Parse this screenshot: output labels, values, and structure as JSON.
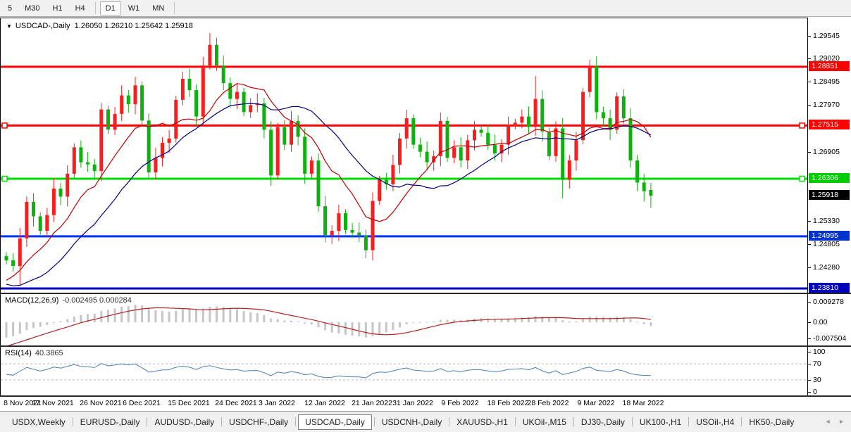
{
  "toolbar": {
    "timeframes": [
      {
        "label": "5",
        "active": false
      },
      {
        "label": "M30",
        "active": false
      },
      {
        "label": "H1",
        "active": false
      },
      {
        "label": "H4",
        "active": false
      },
      {
        "label": "D1",
        "active": true
      },
      {
        "label": "W1",
        "active": false
      },
      {
        "label": "MN",
        "active": false
      }
    ]
  },
  "window": {
    "symbol": "USDCAD-,Daily",
    "open": "1.26050",
    "high": "1.26210",
    "low": "1.25642",
    "close": "1.25918",
    "ohlc_text": "1.26050 1.26210 1.25642 1.25918"
  },
  "price_axis": {
    "ticks": [
      {
        "text": "1.29545",
        "price": 1.29545
      },
      {
        "text": "1.29020",
        "price": 1.2902
      },
      {
        "text": "1.28495",
        "price": 1.28495
      },
      {
        "text": "1.27970",
        "price": 1.2797
      },
      {
        "text": "1.26905",
        "price": 1.26905
      },
      {
        "text": "1.25330",
        "price": 1.2533
      },
      {
        "text": "1.24805",
        "price": 1.24805
      },
      {
        "text": "1.24280",
        "price": 1.2428
      }
    ],
    "markers": [
      {
        "text": "1.28851",
        "price": 1.28851,
        "bg": "#FF0000"
      },
      {
        "text": "1.27515",
        "price": 1.27515,
        "bg": "#FF0000"
      },
      {
        "text": "1.26306",
        "price": 1.26306,
        "bg": "#00CC00"
      },
      {
        "text": "1.25918",
        "price": 1.25918,
        "bg": "#000000"
      },
      {
        "text": "1.24995",
        "price": 1.24995,
        "bg": "#0033CC"
      },
      {
        "text": "1.23810",
        "price": 1.2381,
        "bg": "#0000BB"
      }
    ]
  },
  "macd_panel": {
    "name": "MACD(12,26,9)",
    "values": "-0.002495 0.000284",
    "axis_labels": [
      {
        "text": "0.009278",
        "value": 0.009278
      },
      {
        "text": "0.00",
        "value": 0
      },
      {
        "text": "-0.007504",
        "value": -0.007504
      }
    ]
  },
  "rsi_panel": {
    "name": "RSI(14)",
    "value": "40.3865",
    "axis_labels": [
      {
        "text": "100",
        "value": 100
      },
      {
        "text": "70",
        "value": 70
      },
      {
        "text": "30",
        "value": 30
      },
      {
        "text": "0",
        "value": 0
      }
    ]
  },
  "tabs": {
    "items": [
      "USDX,Weekly",
      "EURUSD-,Daily",
      "AUDUSD-,Daily",
      "USDCHF-,Daily",
      "USDCAD-,Daily",
      "USDCNH-,Daily",
      "XAUUSD-,H1",
      "UKOil-,M15",
      "DJ30-,Daily",
      "UK100-,H1",
      "USOil-,H4",
      "HK50-,Daily"
    ],
    "active": "USDCAD-,Daily",
    "scroll_arrows": "◄ ►"
  },
  "chart_data": [
    {
      "type": "candlestick",
      "title": "USDCAD-,Daily",
      "ylim": [
        1.2371,
        1.2995
      ],
      "x_tick_labels": [
        "8 Nov 2021",
        "17 Nov 2021",
        "26 Nov 2021",
        "6 Dec 2021",
        "15 Dec 2021",
        "24 Dec 2021",
        "3 Jan 2022",
        "12 Jan 2022",
        "21 Jan 2022",
        "31 Jan 2022",
        "9 Feb 2022",
        "18 Feb 2022",
        "28 Feb 2022",
        "9 Mar 2022",
        "18 Mar 2022"
      ],
      "x_tick_indices": [
        0,
        7,
        14,
        20,
        27,
        34,
        40,
        47,
        54,
        60,
        67,
        74,
        80,
        87,
        94
      ],
      "closes": [
        1.2445,
        1.2432,
        1.2495,
        1.2578,
        1.2545,
        1.2512,
        1.2548,
        1.2608,
        1.259,
        1.2642,
        1.2702,
        1.2668,
        1.2663,
        1.2648,
        1.2788,
        1.2742,
        1.2778,
        1.282,
        1.28,
        1.2843,
        1.2763,
        1.2645,
        1.2678,
        1.2712,
        1.2722,
        1.281,
        1.2858,
        1.2832,
        1.2772,
        1.2888,
        1.2935,
        1.2888,
        1.2848,
        1.2812,
        1.2828,
        1.2782,
        1.2798,
        1.2802,
        1.2742,
        1.2638,
        1.2748,
        1.2708,
        1.2762,
        1.2726,
        1.2642,
        1.2672,
        1.2568,
        1.2502,
        1.2512,
        1.2552,
        1.2514,
        1.2508,
        1.2502,
        1.2468,
        1.258,
        1.2628,
        1.2618,
        1.2662,
        1.2722,
        1.2768,
        1.2708,
        1.2692,
        1.2668,
        1.2682,
        1.2762,
        1.2678,
        1.2702,
        1.2672,
        1.2718,
        1.2742,
        1.2735,
        1.2708,
        1.2688,
        1.2708,
        1.2752,
        1.2758,
        1.2772,
        1.2748,
        1.2812,
        1.2738,
        1.2682,
        1.2745,
        1.2628,
        1.2672,
        1.2718,
        1.2828,
        1.2886,
        1.2782,
        1.2768,
        1.2742,
        1.2818,
        1.2768,
        1.2672,
        1.2622,
        1.2602,
        1.25918
      ],
      "prehistory_closes": [
        1.282,
        1.279,
        1.276,
        1.265,
        1.2655,
        1.268,
        1.271,
        1.2735,
        1.275,
        1.272,
        1.268,
        1.264,
        1.26,
        1.2565,
        1.253,
        1.25,
        1.247,
        1.2445,
        1.2415,
        1.2385,
        1.2355,
        1.233,
        1.231,
        1.2288,
        1.2312,
        1.234,
        1.2362,
        1.2387,
        1.2388,
        1.238,
        1.2395,
        1.239,
        1.2456,
        1.2455
      ],
      "overrides": {
        "2": {
          "l": 1.2387
        },
        "14": {
          "h": 1.2803
        },
        "30": {
          "h": 1.2962
        },
        "53": {
          "l": 1.245
        },
        "78": {
          "h": 1.2864
        },
        "82": {
          "l": 1.2586
        },
        "86": {
          "h": 1.2901
        },
        "95": {
          "o": 1.2605,
          "h": 1.2621,
          "l": 1.25642,
          "c": 1.25918
        }
      },
      "hlines": [
        {
          "price": 1.28851,
          "color": "#FF0000",
          "handles": false
        },
        {
          "price": 1.27515,
          "color": "#FF0000",
          "handles": true
        },
        {
          "price": 1.26306,
          "color": "#00DD00",
          "handles": true
        },
        {
          "price": 1.24995,
          "color": "#0033FF",
          "handles": false
        },
        {
          "price": 1.2381,
          "color": "#0000BB",
          "handles": false
        }
      ],
      "moving_averages": [
        {
          "period": 10,
          "color": "#C00000"
        },
        {
          "period": 20,
          "color": "#000080"
        }
      ],
      "bull_color": "#F81E1E",
      "bear_color": "#10B010",
      "last_candle": {
        "open": 1.2605,
        "high": 1.2621,
        "low": 1.25642,
        "close": 1.25918
      }
    },
    {
      "type": "bar",
      "title": "MACD(12,26,9)",
      "params": [
        12,
        26,
        9
      ],
      "current_main": -0.002495,
      "current_signal": 0.000284,
      "ylim": [
        -0.007504,
        0.009278
      ],
      "bar_color": "#C6C6C6",
      "signal_color": "#B22222",
      "derived_from": "candlestick closes"
    },
    {
      "type": "line",
      "title": "RSI(14)",
      "period": 14,
      "current_value": 40.3865,
      "levels": [
        70,
        30
      ],
      "ylim": [
        0,
        100
      ],
      "line_color": "#4B7DB8",
      "level_line_color": "#BBBBBB",
      "derived_from": "candlestick closes"
    }
  ]
}
